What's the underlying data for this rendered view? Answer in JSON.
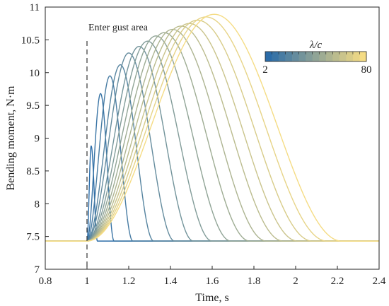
{
  "chart_data": {
    "type": "line",
    "xlabel": "Time, s",
    "ylabel": "Bending moment, N·m",
    "xlim": [
      0.8,
      2.4
    ],
    "ylim": [
      7,
      11
    ],
    "x_ticks": [
      "0.8",
      "1",
      "1.2",
      "1.4",
      "1.6",
      "1.8",
      "2",
      "2.2",
      "2.4"
    ],
    "y_ticks": [
      "7",
      "7.5",
      "8",
      "8.5",
      "9",
      "9.5",
      "10",
      "10.5",
      "11"
    ],
    "grid": false,
    "annotation": {
      "text": "Enter gust area",
      "x": 1.0
    },
    "baseline": 7.43,
    "colorbar": {
      "title": "λ/c",
      "min_label": "2",
      "max_label": "80",
      "color_start": "#2b6ca8",
      "color_end": "#f5dc84",
      "placement": "top-right"
    },
    "series": [
      {
        "peak_time": 1.02,
        "peak_value": 8.88,
        "end_time": 1.05
      },
      {
        "peak_time": 1.065,
        "peak_value": 9.68,
        "end_time": 1.13
      },
      {
        "peak_time": 1.11,
        "peak_value": 9.95,
        "end_time": 1.22
      },
      {
        "peak_time": 1.16,
        "peak_value": 10.12,
        "end_time": 1.32
      },
      {
        "peak_time": 1.2,
        "peak_value": 10.3,
        "end_time": 1.42
      },
      {
        "peak_time": 1.25,
        "peak_value": 10.4,
        "end_time": 1.51
      },
      {
        "peak_time": 1.29,
        "peak_value": 10.48,
        "end_time": 1.6
      },
      {
        "peak_time": 1.33,
        "peak_value": 10.56,
        "end_time": 1.69
      },
      {
        "peak_time": 1.37,
        "peak_value": 10.61,
        "end_time": 1.78
      },
      {
        "peak_time": 1.41,
        "peak_value": 10.66,
        "end_time": 1.86
      },
      {
        "peak_time": 1.45,
        "peak_value": 10.71,
        "end_time": 1.94
      },
      {
        "peak_time": 1.49,
        "peak_value": 10.75,
        "end_time": 2.01
      },
      {
        "peak_time": 1.53,
        "peak_value": 10.8,
        "end_time": 2.08
      },
      {
        "peak_time": 1.57,
        "peak_value": 10.85,
        "end_time": 2.15
      },
      {
        "peak_time": 1.61,
        "peak_value": 10.89,
        "end_time": 2.22
      }
    ]
  }
}
